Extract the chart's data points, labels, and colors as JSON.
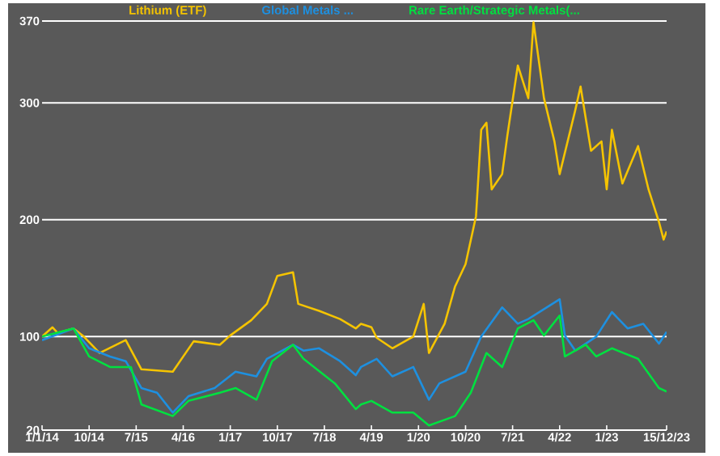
{
  "chart_data": {
    "type": "line",
    "ylim": [
      20,
      370
    ],
    "yticks": [
      20,
      100,
      200,
      300,
      370
    ],
    "xlim": [
      "2014-01-01",
      "2023-12-15"
    ],
    "xticks": [
      {
        "value": "2014-01-01",
        "label": "1/1/14"
      },
      {
        "value": "2014-10-01",
        "label": "10/14"
      },
      {
        "value": "2015-07-01",
        "label": "7/15"
      },
      {
        "value": "2016-04-01",
        "label": "4/16"
      },
      {
        "value": "2017-01-01",
        "label": "1/17"
      },
      {
        "value": "2017-10-01",
        "label": "10/17"
      },
      {
        "value": "2018-07-01",
        "label": "7/18"
      },
      {
        "value": "2019-04-01",
        "label": "4/19"
      },
      {
        "value": "2020-01-01",
        "label": "1/20"
      },
      {
        "value": "2020-10-01",
        "label": "10/20"
      },
      {
        "value": "2021-07-01",
        "label": "7/21"
      },
      {
        "value": "2022-04-01",
        "label": "4/22"
      },
      {
        "value": "2023-01-01",
        "label": "1/23"
      },
      {
        "value": "2023-12-15",
        "label": "15/12/23"
      }
    ],
    "grid": "y",
    "legend": "top",
    "marker": "none",
    "line_style": "solid",
    "series": [
      {
        "name": "Lithium (ETF)",
        "color": "#f5c400",
        "x": [
          "2014-01",
          "2014-03",
          "2014-04",
          "2014-07",
          "2014-09",
          "2014-12",
          "2015-05",
          "2015-08",
          "2016-02",
          "2016-06",
          "2016-11",
          "2017-01",
          "2017-05",
          "2017-08",
          "2017-10",
          "2018-01",
          "2018-02",
          "2018-06",
          "2018-10",
          "2019-01",
          "2019-02",
          "2019-04",
          "2019-05",
          "2019-08",
          "2019-12",
          "2020-02",
          "2020-03",
          "2020-06",
          "2020-08",
          "2020-10",
          "2020-12",
          "2021-01",
          "2021-02",
          "2021-03",
          "2021-05",
          "2021-06",
          "2021-08",
          "2021-10",
          "2021-11",
          "2022-01",
          "2022-03",
          "2022-04",
          "2022-07",
          "2022-08",
          "2022-10",
          "2022-12",
          "2023-01",
          "2023-02",
          "2023-04",
          "2023-07",
          "2023-09",
          "2023-11",
          "2023-11-28",
          "2023-12-15"
        ],
        "values": [
          100,
          108,
          103,
          107,
          100,
          86,
          97,
          72,
          70,
          96,
          93,
          101,
          114,
          128,
          152,
          155,
          128,
          122,
          115,
          107,
          111,
          108,
          99,
          90,
          100,
          128,
          86,
          111,
          143,
          162,
          203,
          277,
          283,
          226,
          239,
          272,
          332,
          304,
          369,
          304,
          267,
          239,
          294,
          314,
          259,
          267,
          226,
          277,
          231,
          263,
          226,
          198,
          183,
          190
        ]
      },
      {
        "name": "Global Metals ...",
        "color": "#1e90e0",
        "x": [
          "2014-01",
          "2014-07",
          "2014-10",
          "2015-02",
          "2015-05",
          "2015-08",
          "2015-11",
          "2016-02",
          "2016-05",
          "2016-10",
          "2017-02",
          "2017-06",
          "2017-08",
          "2018-01",
          "2018-03",
          "2018-06",
          "2018-10",
          "2019-01",
          "2019-02",
          "2019-05",
          "2019-08",
          "2019-12",
          "2020-03",
          "2020-05",
          "2020-10",
          "2021-01",
          "2021-05",
          "2021-08",
          "2021-10",
          "2022-04",
          "2022-05",
          "2022-07",
          "2022-11",
          "2023-02",
          "2023-05",
          "2023-08",
          "2023-11",
          "2023-12-15"
        ],
        "values": [
          97,
          107,
          90,
          83,
          79,
          56,
          52,
          35,
          49,
          56,
          70,
          66,
          81,
          93,
          88,
          90,
          79,
          67,
          74,
          81,
          66,
          74,
          46,
          60,
          70,
          100,
          125,
          111,
          115,
          132,
          101,
          88,
          100,
          121,
          107,
          111,
          94,
          104
        ]
      },
      {
        "name": "Rare Earth/Strategic Metals(...",
        "color": "#00e040",
        "x": [
          "2014-01",
          "2014-07",
          "2014-10",
          "2015-02",
          "2015-06",
          "2015-08",
          "2016-02",
          "2016-05",
          "2016-11",
          "2017-02",
          "2017-06",
          "2017-09",
          "2018-01",
          "2018-03",
          "2018-09",
          "2019-01",
          "2019-02",
          "2019-04",
          "2019-08",
          "2019-12",
          "2020-03",
          "2020-08",
          "2020-11",
          "2021-02",
          "2021-05",
          "2021-08",
          "2021-11",
          "2022-01",
          "2022-04",
          "2022-05",
          "2022-09",
          "2022-11",
          "2023-02",
          "2023-07",
          "2023-11",
          "2023-12-15"
        ],
        "values": [
          100,
          107,
          83,
          74,
          74,
          42,
          32,
          45,
          52,
          56,
          46,
          79,
          93,
          81,
          60,
          38,
          42,
          45,
          35,
          35,
          24,
          32,
          52,
          86,
          74,
          107,
          114,
          101,
          118,
          83,
          93,
          83,
          90,
          81,
          56,
          53
        ]
      }
    ]
  }
}
